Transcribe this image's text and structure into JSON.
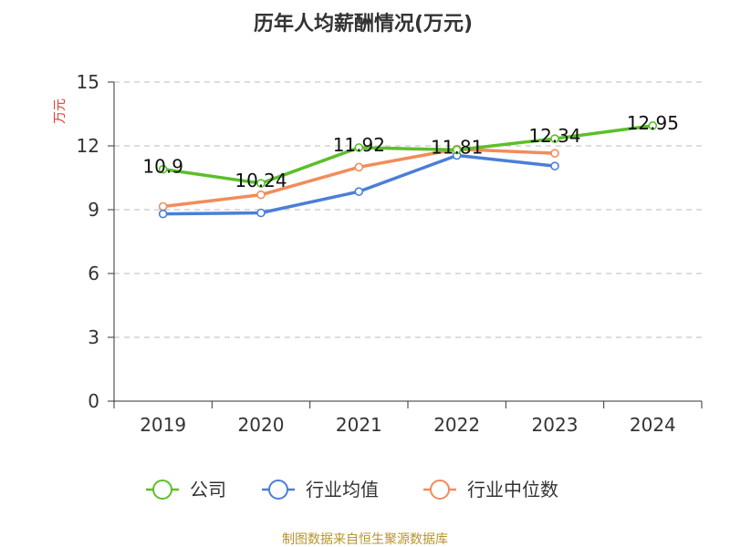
{
  "chart_data": {
    "type": "line",
    "title": "历年人均薪酬情况(万元)",
    "ylabel": "万元",
    "xlabel": "",
    "categories": [
      "2019",
      "2020",
      "2021",
      "2022",
      "2023",
      "2024"
    ],
    "ylim": [
      0,
      15
    ],
    "yticks": [
      0,
      3,
      6,
      9,
      12,
      15
    ],
    "grid": true,
    "legend_position": "bottom",
    "series": [
      {
        "name": "公司",
        "color": "#5cbf2a",
        "values": [
          10.9,
          10.24,
          11.92,
          11.81,
          12.34,
          12.95
        ],
        "labels": [
          "10.9",
          "10.24",
          "11.92",
          "11.81",
          "12.34",
          "12.95"
        ]
      },
      {
        "name": "行业均值",
        "color": "#4a7fd6",
        "values": [
          8.8,
          8.85,
          9.85,
          11.55,
          11.05,
          null
        ],
        "labels": []
      },
      {
        "name": "行业中位数",
        "color": "#f28c5a",
        "values": [
          9.15,
          9.7,
          11.0,
          11.85,
          11.65,
          null
        ],
        "labels": []
      }
    ],
    "source": "制图数据来自恒生聚源数据库"
  }
}
